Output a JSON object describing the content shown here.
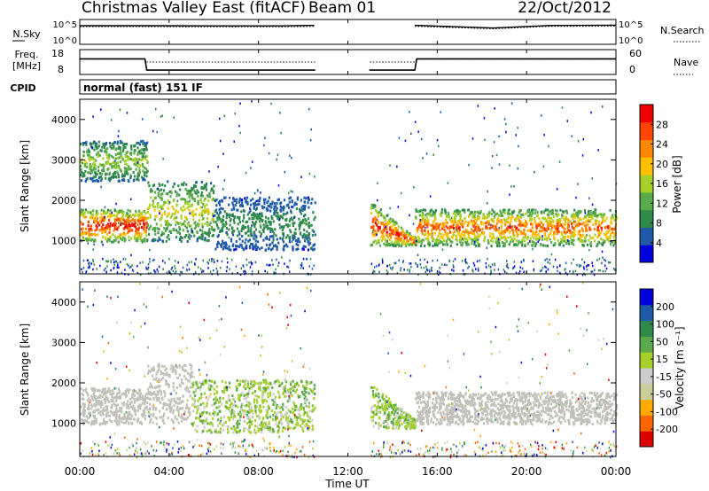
{
  "header": {
    "title": "Christmas Valley East (fitACF)",
    "beam": "Beam 01",
    "date": "22/Oct/2012"
  },
  "noise_panel": {
    "left_label": "N.Sky",
    "left_ticks": [
      "10^5",
      "10^0"
    ],
    "right_ticks": [
      "10^5",
      "10^0"
    ],
    "right_label": "N.Search"
  },
  "freq_panel": {
    "left_label_1": "Freq.",
    "left_label_2": "[MHz]",
    "left_ticks": [
      "18",
      "8"
    ],
    "right_ticks": [
      "60",
      "0"
    ],
    "right_label": "Nave"
  },
  "cpid": {
    "label": "CPID",
    "program": "normal (fast) 151 IF"
  },
  "colors": {
    "power_scale": [
      "#0000dd",
      "#1e5aa8",
      "#2e8a4a",
      "#5aaa4a",
      "#a6d02a",
      "#ffc000",
      "#ff8800",
      "#ff4400",
      "#ee0000"
    ],
    "velocity_scale": [
      "#dd0000",
      "#ff6600",
      "#ffaa00",
      "#cccc99",
      "#cccccc",
      "#a6d02a",
      "#5aaa4a",
      "#2e8a4a",
      "#1e5aa8",
      "#0000dd"
    ],
    "ground_scatter": "#c0c0b8"
  },
  "chart_data": [
    {
      "type": "line",
      "panel": "noise",
      "ylabel": "N.Sky / N.Search",
      "y_scale": "log",
      "ylim": [
        "10^0",
        "10^5"
      ],
      "x": [
        "00:00",
        "03:00",
        "06:00",
        "09:00",
        "10:30",
        "13:00",
        "15:00",
        "18:30",
        "21:00",
        "23:59"
      ],
      "series": [
        {
          "name": "N.Sky",
          "style": "solid",
          "values": [
            10000,
            10000,
            9000,
            9000,
            12000,
            null,
            12000,
            3000,
            11000,
            13000
          ]
        },
        {
          "name": "N.Search",
          "style": "dotted",
          "values": [
            6000,
            6000,
            5500,
            5500,
            7000,
            null,
            7000,
            2000,
            7000,
            8000
          ]
        }
      ]
    },
    {
      "type": "line",
      "panel": "frequency",
      "ylabel": "Freq. [MHz]",
      "ylim": [
        8,
        18
      ],
      "y2label": "Nave",
      "y2lim": [
        0,
        60
      ],
      "x": [
        "00:00",
        "02:55",
        "03:00",
        "10:30",
        "13:00",
        "15:00",
        "15:05",
        "23:59"
      ],
      "series": [
        {
          "name": "Freq.",
          "style": "solid",
          "values": [
            14.5,
            14.5,
            9.2,
            9.2,
            9.2,
            9.2,
            14.5,
            14.5
          ]
        },
        {
          "name": "Nave",
          "style": "dotted",
          "values": [
            38,
            38,
            30,
            30,
            30,
            30,
            38,
            38
          ]
        }
      ]
    },
    {
      "type": "heatmap",
      "panel": "power",
      "ylabel": "Slant Range [km]",
      "y_ticks": [
        1000,
        2000,
        3000,
        4000
      ],
      "ylim": [
        180,
        4500
      ],
      "colorbar": {
        "label": "Power [dB]",
        "ticks": [
          "4",
          "8",
          "12",
          "16",
          "20",
          "24",
          "28"
        ],
        "range": [
          0,
          30
        ]
      },
      "data_gap": [
        "10:30",
        "13:00"
      ],
      "features": [
        {
          "x": [
            0,
            3
          ],
          "range_km": [
            1000,
            1800
          ],
          "peak_db": 30,
          "kind": "intense band"
        },
        {
          "x": [
            3,
            6
          ],
          "range_km": [
            1000,
            2500
          ],
          "peak_db": 18,
          "kind": "patchy"
        },
        {
          "x": [
            6,
            10.5
          ],
          "range_km": [
            800,
            2100
          ],
          "peak_db": 10,
          "kind": "weak band"
        },
        {
          "x": [
            13,
            15
          ],
          "range_km": [
            900,
            2000
          ],
          "peak_db": 28,
          "kind": "descending arc"
        },
        {
          "x": [
            15,
            24
          ],
          "range_km": [
            900,
            1800
          ],
          "peak_db": 26,
          "kind": "intense band"
        },
        {
          "x": [
            0,
            3
          ],
          "range_km": [
            2500,
            3500
          ],
          "peak_db": 16,
          "kind": "high patches"
        }
      ]
    },
    {
      "type": "heatmap",
      "panel": "velocity",
      "ylabel": "Slant Range [km]",
      "xlabel": "Time UT",
      "x_ticks": [
        "00:00",
        "04:00",
        "08:00",
        "12:00",
        "16:00",
        "20:00",
        "00:00"
      ],
      "y_ticks": [
        1000,
        2000,
        3000,
        4000
      ],
      "ylim": [
        180,
        4500
      ],
      "colorbar": {
        "label": "Velocity [m s⁻¹]",
        "ticks": [
          "200",
          "100",
          "50",
          "15",
          "-15",
          "-50",
          "-100",
          "-200"
        ],
        "range": [
          -250,
          250
        ]
      },
      "data_gap": [
        "10:30",
        "13:00"
      ],
      "features": [
        {
          "x": [
            0,
            3
          ],
          "range_km": [
            1000,
            1900
          ],
          "velocity": 0,
          "kind": "ground scatter"
        },
        {
          "x": [
            3,
            5
          ],
          "range_km": [
            1000,
            2500
          ],
          "velocity": 0,
          "kind": "ground scatter"
        },
        {
          "x": [
            5,
            10.5
          ],
          "range_km": [
            800,
            2100
          ],
          "velocity": 30,
          "kind": "band"
        },
        {
          "x": [
            13,
            15
          ],
          "range_km": [
            900,
            2000
          ],
          "velocity": 40,
          "kind": "descending arc"
        },
        {
          "x": [
            15,
            24
          ],
          "range_km": [
            1000,
            1800
          ],
          "velocity": 0,
          "kind": "ground scatter"
        }
      ]
    }
  ]
}
